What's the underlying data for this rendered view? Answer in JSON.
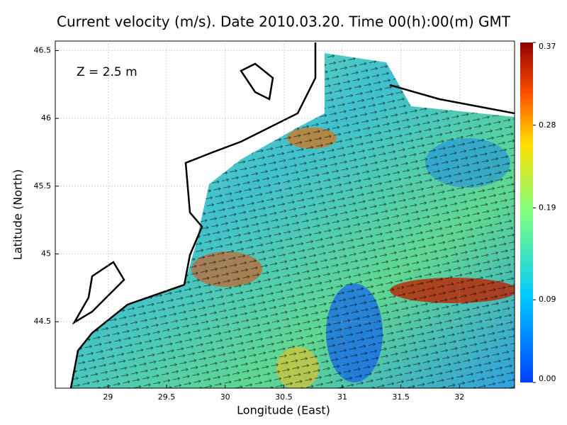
{
  "title": "Current velocity (m/s). Date 2010.03.20. Time 00(h):00(m) GMT",
  "annotation": "Z = 2.5 m",
  "x_axis": {
    "label": "Longitude (East)",
    "lim": [
      28.55,
      32.47
    ],
    "ticks": [
      29,
      29.5,
      30,
      30.5,
      31,
      31.5,
      32
    ]
  },
  "y_axis": {
    "label": "Latitude (North)",
    "lim": [
      44.01,
      46.57
    ],
    "ticks": [
      44.5,
      45,
      45.5,
      46,
      46.5
    ]
  },
  "colorbar": {
    "lim": [
      0,
      0.37
    ],
    "ticks": [
      {
        "value": 0,
        "label": "0.00"
      },
      0.09,
      0.19,
      0.28,
      0.37
    ]
  }
}
